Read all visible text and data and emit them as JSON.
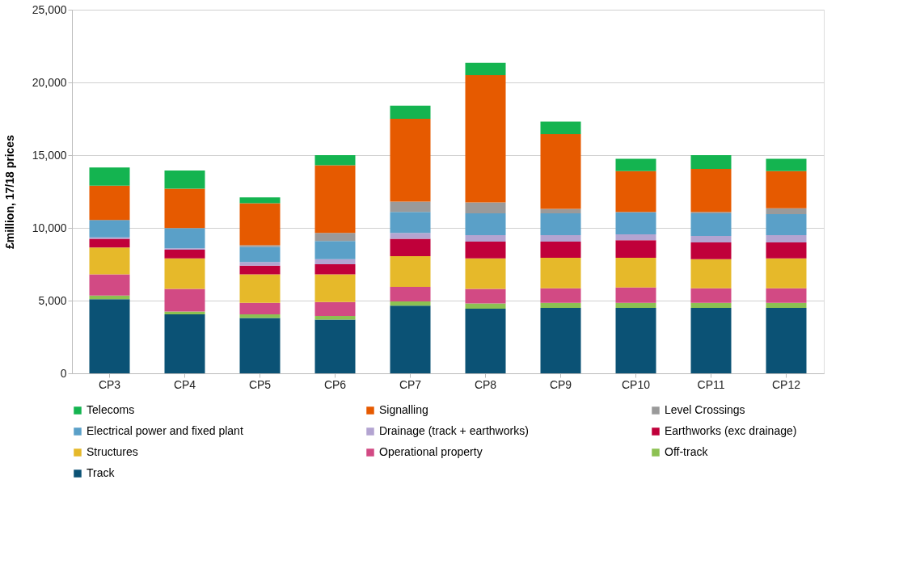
{
  "chart_data": {
    "type": "bar",
    "stacked": true,
    "ylabel": "£million, 17/18 prices",
    "categories": [
      "CP3",
      "CP4",
      "CP5",
      "CP6",
      "CP7",
      "CP8",
      "CP9",
      "CP10",
      "CP11",
      "CP12"
    ],
    "series": [
      {
        "name": "Track",
        "color": "#0b5275",
        "values": [
          5100,
          4050,
          3800,
          3700,
          4650,
          4450,
          4500,
          4500,
          4500,
          4500
        ]
      },
      {
        "name": "Off-track",
        "color": "#8cc152",
        "values": [
          250,
          200,
          250,
          250,
          300,
          350,
          350,
          350,
          350,
          350
        ]
      },
      {
        "name": "Operational property",
        "color": "#d24a84",
        "values": [
          1450,
          1550,
          800,
          950,
          1000,
          1000,
          1000,
          1050,
          1000,
          1000
        ]
      },
      {
        "name": "Structures",
        "color": "#e6b92a",
        "values": [
          1850,
          2100,
          1950,
          1900,
          2100,
          2100,
          2100,
          2050,
          2000,
          2050
        ]
      },
      {
        "name": "Earthworks (exc drainage)",
        "color": "#c0003a",
        "values": [
          600,
          600,
          600,
          700,
          1200,
          1150,
          1100,
          1200,
          1150,
          1100
        ]
      },
      {
        "name": "Drainage (track + earthworks)",
        "color": "#b3a4d1",
        "values": [
          100,
          100,
          250,
          350,
          400,
          450,
          450,
          400,
          450,
          500
        ]
      },
      {
        "name": "Electrical power and fixed plant",
        "color": "#5aa0c8",
        "values": [
          1150,
          1350,
          1050,
          1250,
          1450,
          1500,
          1500,
          1500,
          1550,
          1450
        ]
      },
      {
        "name": "Level Crossings",
        "color": "#9a9a9a",
        "values": [
          50,
          50,
          100,
          550,
          700,
          750,
          300,
          50,
          100,
          400
        ]
      },
      {
        "name": "Signalling",
        "color": "#e65a00",
        "values": [
          2350,
          2700,
          2900,
          4650,
          5700,
          8750,
          5150,
          2800,
          2950,
          2550
        ]
      },
      {
        "name": "Telecoms",
        "color": "#14b450",
        "values": [
          1250,
          1250,
          400,
          700,
          900,
          850,
          850,
          850,
          950,
          850
        ]
      }
    ],
    "ylim": [
      0,
      25000
    ],
    "yticks": [
      0,
      {
        "value": 5000,
        "label": "5,000"
      },
      {
        "value": 10000,
        "label": "10,000"
      },
      {
        "value": 15000,
        "label": "15,000"
      },
      {
        "value": 20000,
        "label": "20,000"
      },
      {
        "value": 25000,
        "label": "25,000"
      }
    ],
    "grid": "y",
    "legend": "bottom"
  }
}
